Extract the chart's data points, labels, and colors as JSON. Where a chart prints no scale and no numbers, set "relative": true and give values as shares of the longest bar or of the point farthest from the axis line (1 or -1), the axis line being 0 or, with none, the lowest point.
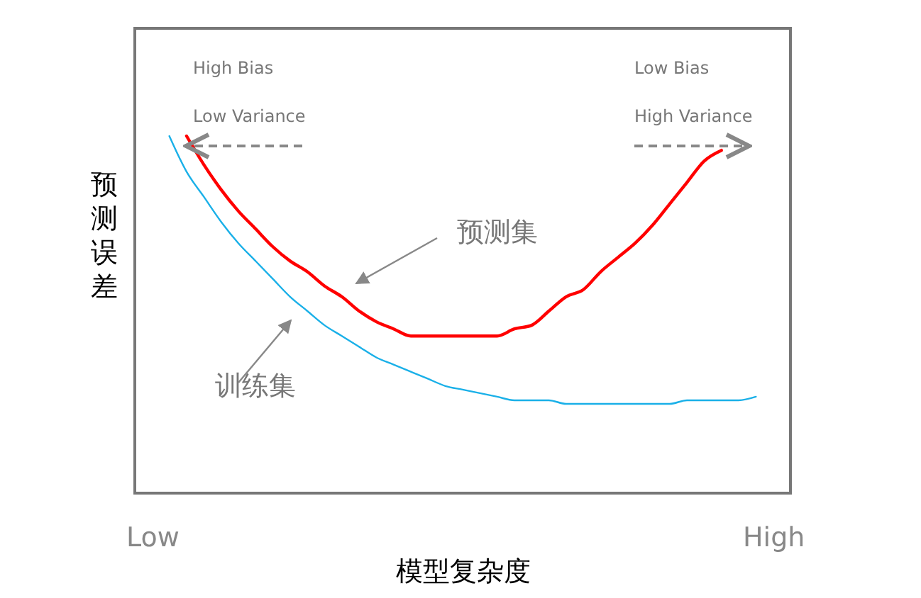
{
  "chart_data": {
    "type": "line",
    "relative": true,
    "xlabel": "模型复杂度",
    "ylabel": "预测误差",
    "categories": [
      "Low",
      null,
      null,
      null,
      null,
      null,
      null,
      null,
      null,
      null,
      null,
      null,
      null,
      null,
      null,
      null,
      null,
      null,
      null,
      null,
      null,
      null,
      null,
      null,
      null,
      null,
      null,
      null,
      null,
      null,
      null,
      null,
      null,
      null,
      null,
      null,
      "High"
    ],
    "annotations": [
      "High Bias",
      "Low Variance",
      "Low Bias",
      "High Variance"
    ],
    "series": [
      {
        "name": "预测集",
        "color": "#ff0000",
        "values": [
          null,
          null,
          1.0,
          0.92,
          0.85,
          0.79,
          0.74,
          0.69,
          0.65,
          0.62,
          0.58,
          0.55,
          0.51,
          0.48,
          0.46,
          0.44,
          0.44,
          0.44,
          0.44,
          0.44,
          0.44,
          0.46,
          0.47,
          0.51,
          0.55,
          0.57,
          0.62,
          0.66,
          0.7,
          0.75,
          0.81,
          0.87,
          0.93,
          0.96,
          null,
          null,
          null
        ]
      },
      {
        "name": "训练集",
        "color": "#1ab0e8",
        "values": [
          null,
          1.0,
          0.9,
          0.83,
          0.76,
          0.7,
          0.65,
          0.6,
          0.55,
          0.51,
          0.47,
          0.44,
          0.41,
          0.38,
          0.36,
          0.34,
          0.32,
          0.3,
          0.29,
          0.28,
          0.27,
          0.26,
          0.26,
          0.26,
          0.25,
          0.25,
          0.25,
          0.25,
          0.25,
          0.25,
          0.25,
          0.26,
          0.26,
          0.26,
          0.26,
          0.27,
          null
        ]
      }
    ]
  }
}
